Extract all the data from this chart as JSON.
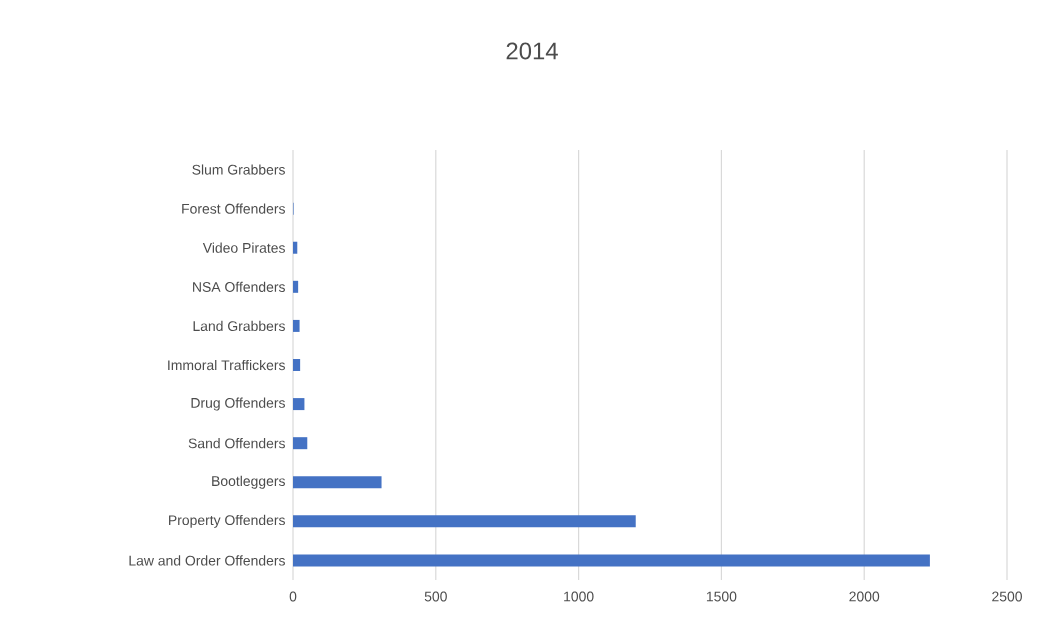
{
  "chart_data": {
    "type": "bar",
    "orientation": "horizontal",
    "title": "2014",
    "categories": [
      "Slum Grabbers",
      "Forest Offenders",
      "Video Pirates",
      "NSA Offenders",
      "Land Grabbers",
      "Immoral Traffickers",
      "Drug Offenders",
      "Sand Offenders",
      "Bootleggers",
      "Property Offenders",
      "Law and Order Offenders"
    ],
    "values": [
      0,
      2,
      15,
      18,
      23,
      25,
      40,
      50,
      310,
      1200,
      2230
    ],
    "color": "#4472c4",
    "xlim": [
      0,
      2500
    ],
    "xticks": [
      0,
      500,
      1000,
      1500,
      2000,
      2500
    ],
    "grid": "x"
  }
}
